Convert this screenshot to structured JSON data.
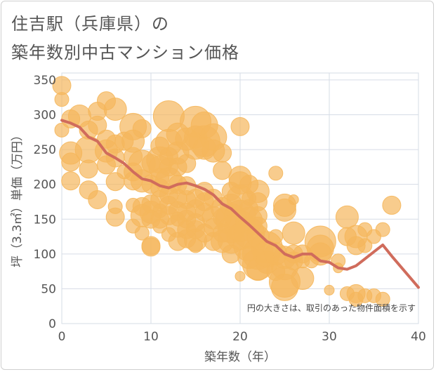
{
  "header": {
    "title_line1": "住吉駅（兵庫県）の",
    "title_line2": "築年数別中古マンション価格"
  },
  "colors": {
    "bubble": "#f5b75c",
    "line": "#d06c5c",
    "grid": "#d6dce6",
    "axis_text": "#555555"
  },
  "chart_data": {
    "type": "scatter",
    "title": "住吉駅（兵庫県）の築年数別中古マンション価格",
    "xlabel": "築年数（年）",
    "ylabel": "坪（3.3㎡）単価（万円）",
    "xlim": [
      0,
      40
    ],
    "ylim": [
      0,
      360
    ],
    "xticks": [
      "0",
      "10",
      "20",
      "30",
      "40"
    ],
    "yticks": [
      "0",
      "50",
      "100",
      "150",
      "200",
      "250",
      "300",
      "350"
    ],
    "grid": true,
    "annotation": "円の大きさは、取引のあった物件面積を示す",
    "series": [
      {
        "kind": "bubbles",
        "points": [
          [
            0,
            342,
            3
          ],
          [
            0,
            322,
            2
          ],
          [
            0,
            278,
            2
          ],
          [
            1,
            294,
            3
          ],
          [
            2,
            298,
            4
          ],
          [
            1,
            245,
            4
          ],
          [
            1,
            232,
            3
          ],
          [
            1,
            205,
            3
          ],
          [
            3,
            278,
            3
          ],
          [
            3,
            250,
            5
          ],
          [
            3,
            222,
            3
          ],
          [
            3,
            192,
            3
          ],
          [
            4,
            305,
            3
          ],
          [
            4,
            285,
            3
          ],
          [
            4,
            178,
            3
          ],
          [
            5,
            320,
            3
          ],
          [
            5,
            265,
            3
          ],
          [
            5,
            248,
            4
          ],
          [
            5,
            228,
            3
          ],
          [
            6,
            308,
            4
          ],
          [
            6,
            258,
            3
          ],
          [
            6,
            238,
            3
          ],
          [
            6,
            204,
            3
          ],
          [
            6,
            168,
            2
          ],
          [
            6,
            153,
            3
          ],
          [
            7,
            262,
            3
          ],
          [
            7,
            218,
            2
          ],
          [
            8,
            283,
            5
          ],
          [
            8,
            262,
            4
          ],
          [
            8,
            240,
            3
          ],
          [
            8,
            218,
            3
          ],
          [
            8,
            205,
            3
          ],
          [
            8,
            170,
            2
          ],
          [
            8,
            140,
            2
          ],
          [
            9,
            280,
            3
          ],
          [
            9,
            230,
            5
          ],
          [
            9,
            205,
            4
          ],
          [
            9,
            168,
            3
          ],
          [
            9,
            155,
            4
          ],
          [
            9,
            130,
            2
          ],
          [
            10,
            230,
            3
          ],
          [
            10,
            200,
            3
          ],
          [
            10,
            172,
            3
          ],
          [
            10,
            160,
            4
          ],
          [
            10,
            150,
            3
          ],
          [
            10,
            112,
            3
          ],
          [
            10,
            110,
            3
          ],
          [
            11,
            255,
            3
          ],
          [
            11,
            235,
            5
          ],
          [
            11,
            225,
            4
          ],
          [
            11,
            210,
            3
          ],
          [
            11,
            195,
            3
          ],
          [
            11,
            178,
            3
          ],
          [
            11,
            162,
            2
          ],
          [
            11,
            150,
            3
          ],
          [
            11,
            140,
            2
          ],
          [
            12,
            298,
            6
          ],
          [
            12,
            260,
            5
          ],
          [
            12,
            240,
            3
          ],
          [
            12,
            225,
            3
          ],
          [
            12,
            205,
            5
          ],
          [
            12,
            185,
            3
          ],
          [
            12,
            170,
            3
          ],
          [
            12,
            155,
            3
          ],
          [
            12,
            128,
            2
          ],
          [
            13,
            272,
            4
          ],
          [
            13,
            245,
            4
          ],
          [
            13,
            225,
            3
          ],
          [
            13,
            200,
            3
          ],
          [
            13,
            180,
            3
          ],
          [
            13,
            162,
            3
          ],
          [
            13,
            150,
            2
          ],
          [
            13,
            140,
            4
          ],
          [
            13,
            118,
            3
          ],
          [
            14,
            265,
            4
          ],
          [
            14,
            230,
            3
          ],
          [
            14,
            198,
            3
          ],
          [
            14,
            178,
            3
          ],
          [
            14,
            160,
            3
          ],
          [
            14,
            150,
            3
          ],
          [
            14,
            135,
            3
          ],
          [
            14,
            122,
            3
          ],
          [
            15,
            290,
            6
          ],
          [
            15,
            268,
            4
          ],
          [
            15,
            255,
            5
          ],
          [
            15,
            180,
            3
          ],
          [
            15,
            165,
            3
          ],
          [
            15,
            145,
            3
          ],
          [
            15,
            135,
            3
          ],
          [
            15,
            120,
            4
          ],
          [
            15,
            112,
            2
          ],
          [
            16,
            285,
            5
          ],
          [
            16,
            262,
            6
          ],
          [
            16,
            252,
            4
          ],
          [
            16,
            190,
            3
          ],
          [
            16,
            175,
            3
          ],
          [
            16,
            160,
            3
          ],
          [
            16,
            130,
            3
          ],
          [
            17,
            268,
            5
          ],
          [
            17,
            248,
            4
          ],
          [
            17,
            180,
            3
          ],
          [
            17,
            152,
            4
          ],
          [
            17,
            138,
            3
          ],
          [
            17,
            118,
            3
          ],
          [
            18,
            245,
            3
          ],
          [
            18,
            220,
            3
          ],
          [
            18,
            165,
            4
          ],
          [
            18,
            152,
            3
          ],
          [
            18,
            130,
            3
          ],
          [
            18,
            118,
            4
          ],
          [
            19,
            150,
            6
          ],
          [
            19,
            135,
            5
          ],
          [
            19,
            120,
            5
          ],
          [
            19,
            100,
            3
          ],
          [
            19,
            190,
            3
          ],
          [
            19,
            170,
            4
          ],
          [
            20,
            283,
            3
          ],
          [
            20,
            210,
            4
          ],
          [
            20,
            202,
            4
          ],
          [
            20,
            180,
            5
          ],
          [
            20,
            155,
            6
          ],
          [
            20,
            140,
            6
          ],
          [
            20,
            125,
            5
          ],
          [
            20,
            68,
            1
          ],
          [
            21,
            200,
            3
          ],
          [
            21,
            180,
            2
          ],
          [
            21,
            165,
            3
          ],
          [
            21,
            148,
            5
          ],
          [
            21,
            130,
            6
          ],
          [
            21,
            112,
            6
          ],
          [
            21,
            95,
            4
          ],
          [
            22,
            190,
            4
          ],
          [
            22,
            175,
            3
          ],
          [
            22,
            155,
            3
          ],
          [
            22,
            140,
            3
          ],
          [
            22,
            125,
            4
          ],
          [
            22,
            100,
            6
          ],
          [
            22,
            85,
            6
          ],
          [
            22,
            78,
            4
          ],
          [
            23,
            110,
            6
          ],
          [
            23,
            100,
            5
          ],
          [
            23,
            88,
            4
          ],
          [
            24,
            216,
            2
          ],
          [
            24,
            125,
            2
          ],
          [
            24,
            100,
            4
          ],
          [
            24,
            75,
            3
          ],
          [
            25,
            170,
            4
          ],
          [
            25,
            163,
            4
          ],
          [
            25,
            95,
            4
          ],
          [
            25,
            82,
            5
          ],
          [
            25,
            60,
            6
          ],
          [
            25,
            52,
            5
          ],
          [
            26,
            178,
            1
          ],
          [
            26,
            130,
            4
          ],
          [
            26,
            100,
            3
          ],
          [
            26,
            90,
            3
          ],
          [
            27,
            100,
            3
          ],
          [
            27,
            90,
            2
          ],
          [
            27,
            65,
            4
          ],
          [
            28,
            90,
            2
          ],
          [
            29,
            118,
            6
          ],
          [
            29,
            108,
            5
          ],
          [
            29,
            100,
            4
          ],
          [
            30,
            48,
            1
          ],
          [
            31,
            90,
            2
          ],
          [
            31,
            80,
            1
          ],
          [
            32,
            153,
            4
          ],
          [
            32,
            125,
            3
          ],
          [
            32,
            43,
            2
          ],
          [
            33,
            125,
            4
          ],
          [
            33,
            112,
            3
          ],
          [
            33,
            43,
            3
          ],
          [
            33,
            35,
            2
          ],
          [
            34,
            135,
            2
          ],
          [
            34,
            112,
            2
          ],
          [
            34,
            40,
            2
          ],
          [
            35,
            125,
            2
          ],
          [
            35,
            40,
            2
          ],
          [
            36,
            135,
            2
          ],
          [
            36,
            35,
            2
          ],
          [
            37,
            170,
            3
          ]
        ]
      },
      {
        "kind": "line",
        "x": [
          0,
          1,
          2,
          3,
          4,
          5,
          6,
          7,
          8,
          9,
          10,
          11,
          12,
          13,
          14,
          15,
          16,
          17,
          18,
          19,
          20,
          21,
          22,
          23,
          24,
          25,
          26,
          27,
          28,
          29,
          30,
          31,
          32,
          33,
          34,
          35,
          36,
          37,
          38,
          39,
          40
        ],
        "y": [
          292,
          288,
          282,
          268,
          262,
          245,
          238,
          230,
          218,
          208,
          205,
          198,
          195,
          200,
          202,
          198,
          193,
          185,
          172,
          165,
          153,
          142,
          130,
          118,
          112,
          100,
          95,
          100,
          100,
          90,
          88,
          80,
          78,
          83,
          93,
          103,
          113,
          97,
          82,
          67,
          52
        ]
      }
    ]
  }
}
